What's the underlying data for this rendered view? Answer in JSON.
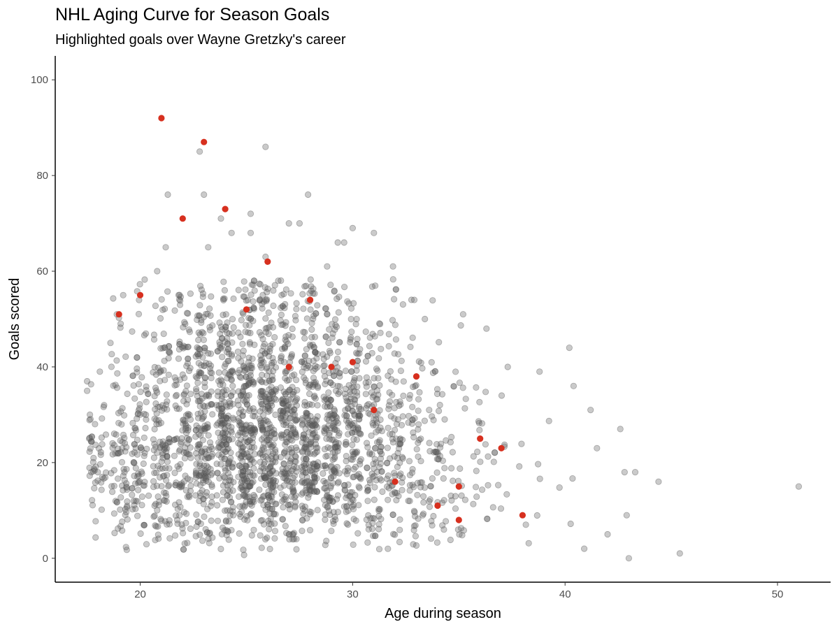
{
  "chart_data": {
    "type": "scatter",
    "title": "NHL Aging Curve for Season Goals",
    "subtitle": "Highlighted goals over Wayne Gretzky's career",
    "xlabel": "Age during season",
    "ylabel": "Goals scored",
    "xlim": [
      16,
      52.5
    ],
    "ylim": [
      -5,
      105
    ],
    "x_ticks": [
      20,
      30,
      40,
      50
    ],
    "y_ticks": [
      0,
      20,
      40,
      60,
      80,
      100
    ],
    "grid": false,
    "legend": "none",
    "colors": {
      "background": "#ffffff",
      "axis": "#000000",
      "other_players": "#595959",
      "gretzky": "#d7301f"
    },
    "series": [
      {
        "style": "grey, semi-transparent",
        "sample_points": [
          {
            "x": 17.5,
            "y": 37
          },
          {
            "x": 17.5,
            "y": 35
          },
          {
            "x": 17.6,
            "y": 25
          },
          {
            "x": 17.7,
            "y": 18
          },
          {
            "x": 18.1,
            "y": 39
          },
          {
            "x": 18.3,
            "y": 32
          },
          {
            "x": 18.6,
            "y": 45
          },
          {
            "x": 18.9,
            "y": 51
          },
          {
            "x": 19.2,
            "y": 55
          },
          {
            "x": 20.8,
            "y": 60
          },
          {
            "x": 21.2,
            "y": 65
          },
          {
            "x": 21.3,
            "y": 76
          },
          {
            "x": 22.8,
            "y": 85
          },
          {
            "x": 23.0,
            "y": 76
          },
          {
            "x": 23.2,
            "y": 65
          },
          {
            "x": 23.8,
            "y": 71
          },
          {
            "x": 24.3,
            "y": 68
          },
          {
            "x": 25.2,
            "y": 72
          },
          {
            "x": 25.2,
            "y": 68
          },
          {
            "x": 25.9,
            "y": 86
          },
          {
            "x": 25.9,
            "y": 63
          },
          {
            "x": 26.5,
            "y": 58
          },
          {
            "x": 27.0,
            "y": 70
          },
          {
            "x": 27.5,
            "y": 70
          },
          {
            "x": 27.9,
            "y": 76
          },
          {
            "x": 28.8,
            "y": 61
          },
          {
            "x": 29.3,
            "y": 66
          },
          {
            "x": 29.6,
            "y": 66
          },
          {
            "x": 30.0,
            "y": 69
          },
          {
            "x": 31.0,
            "y": 68
          },
          {
            "x": 31.9,
            "y": 61
          },
          {
            "x": 32.9,
            "y": 54
          },
          {
            "x": 33.4,
            "y": 50
          },
          {
            "x": 35.2,
            "y": 51
          },
          {
            "x": 36.3,
            "y": 48
          },
          {
            "x": 37.3,
            "y": 40
          },
          {
            "x": 38.8,
            "y": 39
          },
          {
            "x": 40.2,
            "y": 44
          },
          {
            "x": 40.4,
            "y": 36
          },
          {
            "x": 41.2,
            "y": 31
          },
          {
            "x": 42.6,
            "y": 27
          },
          {
            "x": 41.5,
            "y": 23
          },
          {
            "x": 42.8,
            "y": 18
          },
          {
            "x": 43.3,
            "y": 18
          },
          {
            "x": 44.4,
            "y": 16
          },
          {
            "x": 42.9,
            "y": 9
          },
          {
            "x": 42.0,
            "y": 5
          },
          {
            "x": 40.9,
            "y": 2
          },
          {
            "x": 43.0,
            "y": 0
          },
          {
            "x": 45.4,
            "y": 1
          },
          {
            "x": 51.0,
            "y": 15
          }
        ]
      },
      {
        "name": "Wayne Gretzky",
        "points": [
          {
            "x": 19,
            "y": 51
          },
          {
            "x": 20,
            "y": 55
          },
          {
            "x": 21,
            "y": 92
          },
          {
            "x": 22,
            "y": 71
          },
          {
            "x": 23,
            "y": 87
          },
          {
            "x": 24,
            "y": 73
          },
          {
            "x": 25,
            "y": 52
          },
          {
            "x": 26,
            "y": 62
          },
          {
            "x": 27,
            "y": 40
          },
          {
            "x": 28,
            "y": 54
          },
          {
            "x": 29,
            "y": 40
          },
          {
            "x": 30,
            "y": 41
          },
          {
            "x": 31,
            "y": 31
          },
          {
            "x": 32,
            "y": 16
          },
          {
            "x": 33,
            "y": 38
          },
          {
            "x": 34,
            "y": 11
          },
          {
            "x": 35,
            "y": 15
          },
          {
            "x": 35,
            "y": 8
          },
          {
            "x": 36,
            "y": 25
          },
          {
            "x": 37,
            "y": 23
          },
          {
            "x": 38,
            "y": 9
          }
        ]
      }
    ]
  }
}
